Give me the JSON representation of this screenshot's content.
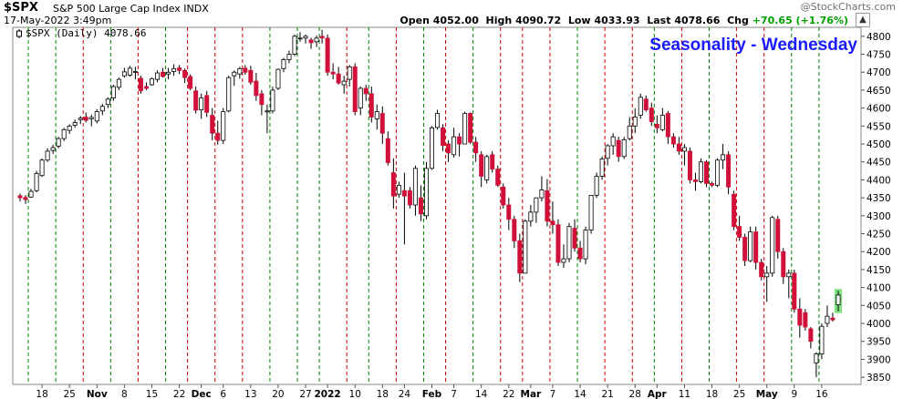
{
  "header": {
    "symbol": "$SPX",
    "description": "S&P 500 Large Cap Index INDX",
    "datetime": "17-May-2022 3:49pm",
    "copyright": "@StockCharts.com",
    "open_label": "Open",
    "open": "4052.00",
    "high_label": "High",
    "high": "4090.72",
    "low_label": "Low",
    "low": "4033.93",
    "last_label": "Last",
    "last": "4078.66",
    "chg_label": "Chg",
    "chg": "+70.65 (+1.76%)"
  },
  "icons": {
    "legend_swatch": "candlestick-legend-icon",
    "scroll_up": "arrow-up-icon"
  },
  "colors": {
    "up_candle": "#ffffff",
    "down_candle": "#d0103a",
    "title": "#1a1aff",
    "wed_line_green": "#008000",
    "wed_line_red": "#cc0000",
    "last_bar_highlight": "#7fe07f",
    "change": "#00a000"
  },
  "chart_data": {
    "type": "candlestick",
    "title": "Seasonality - Wednesday",
    "legend": "$SPX (Daily) 4078.66",
    "ylim": [
      3830,
      4825
    ],
    "y_ticks": [
      3850,
      3900,
      3950,
      4000,
      4050,
      4100,
      4150,
      4200,
      4250,
      4300,
      4350,
      4400,
      4450,
      4500,
      4550,
      4600,
      4650,
      4700,
      4750,
      4800
    ],
    "x_tick_labels": [
      {
        "label": "18",
        "bar": 4,
        "bold": false
      },
      {
        "label": "25",
        "bar": 9,
        "bold": false
      },
      {
        "label": "Nov",
        "bar": 14,
        "bold": true
      },
      {
        "label": "8",
        "bar": 19,
        "bold": false
      },
      {
        "label": "15",
        "bar": 24,
        "bold": false
      },
      {
        "label": "22",
        "bar": 29,
        "bold": false
      },
      {
        "label": "Dec",
        "bar": 33,
        "bold": true
      },
      {
        "label": "6",
        "bar": 37,
        "bold": false
      },
      {
        "label": "13",
        "bar": 42,
        "bold": false
      },
      {
        "label": "20",
        "bar": 47,
        "bold": false
      },
      {
        "label": "27",
        "bar": 52,
        "bold": false
      },
      {
        "label": "2022",
        "bar": 56,
        "bold": true
      },
      {
        "label": "10",
        "bar": 61,
        "bold": false
      },
      {
        "label": "18",
        "bar": 66,
        "bold": false
      },
      {
        "label": "24",
        "bar": 70,
        "bold": false
      },
      {
        "label": "Feb",
        "bar": 75,
        "bold": true
      },
      {
        "label": "7",
        "bar": 79,
        "bold": false
      },
      {
        "label": "14",
        "bar": 84,
        "bold": false
      },
      {
        "label": "22",
        "bar": 89,
        "bold": false
      },
      {
        "label": "Mar",
        "bar": 93,
        "bold": true
      },
      {
        "label": "7",
        "bar": 97,
        "bold": false
      },
      {
        "label": "14",
        "bar": 102,
        "bold": false
      },
      {
        "label": "21",
        "bar": 107,
        "bold": false
      },
      {
        "label": "28",
        "bar": 112,
        "bold": false
      },
      {
        "label": "Apr",
        "bar": 116,
        "bold": true
      },
      {
        "label": "11",
        "bar": 121,
        "bold": false
      },
      {
        "label": "18",
        "bar": 126,
        "bold": false
      },
      {
        "label": "25",
        "bar": 131,
        "bold": false
      },
      {
        "label": "May",
        "bar": 136,
        "bold": true
      },
      {
        "label": "9",
        "bar": 141,
        "bold": false
      },
      {
        "label": "16",
        "bar": 146,
        "bold": false
      }
    ],
    "wednesday_markers": [
      {
        "bar": 2,
        "color": "green"
      },
      {
        "bar": 7,
        "color": "green"
      },
      {
        "bar": 12,
        "color": "red"
      },
      {
        "bar": 17,
        "color": "green"
      },
      {
        "bar": 22,
        "color": "red"
      },
      {
        "bar": 27,
        "color": "green"
      },
      {
        "bar": 31,
        "color": "red"
      },
      {
        "bar": 36,
        "color": "red"
      },
      {
        "bar": 41,
        "color": "red"
      },
      {
        "bar": 46,
        "color": "green"
      },
      {
        "bar": 51,
        "color": "green"
      },
      {
        "bar": 55,
        "color": "green"
      },
      {
        "bar": 60,
        "color": "red"
      },
      {
        "bar": 64,
        "color": "green"
      },
      {
        "bar": 69,
        "color": "red"
      },
      {
        "bar": 74,
        "color": "green"
      },
      {
        "bar": 78,
        "color": "red"
      },
      {
        "bar": 83,
        "color": "green"
      },
      {
        "bar": 88,
        "color": "red"
      },
      {
        "bar": 92,
        "color": "red"
      },
      {
        "bar": 97,
        "color": "red"
      },
      {
        "bar": 102,
        "color": "green"
      },
      {
        "bar": 107,
        "color": "red"
      },
      {
        "bar": 112,
        "color": "red"
      },
      {
        "bar": 116,
        "color": "green"
      },
      {
        "bar": 121,
        "color": "red"
      },
      {
        "bar": 126,
        "color": "green"
      },
      {
        "bar": 131,
        "color": "red"
      },
      {
        "bar": 136,
        "color": "red"
      },
      {
        "bar": 141,
        "color": "green"
      },
      {
        "bar": 146,
        "color": "green"
      }
    ],
    "series": [
      [
        4356,
        4362,
        4340,
        4350
      ],
      [
        4351,
        4358,
        4333,
        4345
      ],
      [
        4352,
        4375,
        4350,
        4368
      ],
      [
        4370,
        4425,
        4365,
        4418
      ],
      [
        4412,
        4460,
        4408,
        4455
      ],
      [
        4455,
        4488,
        4450,
        4480
      ],
      [
        4482,
        4498,
        4472,
        4490
      ],
      [
        4494,
        4520,
        4488,
        4515
      ],
      [
        4515,
        4545,
        4508,
        4540
      ],
      [
        4538,
        4555,
        4528,
        4550
      ],
      [
        4552,
        4568,
        4545,
        4560
      ],
      [
        4568,
        4578,
        4555,
        4572
      ],
      [
        4575,
        4588,
        4560,
        4566
      ],
      [
        4570,
        4582,
        4549,
        4574
      ],
      [
        4564,
        4597,
        4557,
        4590
      ],
      [
        4592,
        4612,
        4580,
        4605
      ],
      [
        4610,
        4630,
        4600,
        4625
      ],
      [
        4628,
        4665,
        4620,
        4660
      ],
      [
        4658,
        4685,
        4650,
        4680
      ],
      [
        4690,
        4712,
        4685,
        4701
      ],
      [
        4692,
        4718,
        4688,
        4711
      ],
      [
        4702,
        4715,
        4680,
        4702
      ],
      [
        4683,
        4690,
        4640,
        4648
      ],
      [
        4660,
        4672,
        4650,
        4655
      ],
      [
        4665,
        4685,
        4662,
        4682
      ],
      [
        4680,
        4705,
        4672,
        4698
      ],
      [
        4700,
        4712,
        4685,
        4688
      ],
      [
        4695,
        4712,
        4680,
        4700
      ],
      [
        4702,
        4722,
        4690,
        4710
      ],
      [
        4712,
        4720,
        4695,
        4705
      ],
      [
        4705,
        4710,
        4670,
        4685
      ],
      [
        4688,
        4694,
        4650,
        4655
      ],
      [
        4648,
        4660,
        4585,
        4594
      ],
      [
        4595,
        4640,
        4570,
        4628
      ],
      [
        4635,
        4648,
        4575,
        4588
      ],
      [
        4580,
        4600,
        4510,
        4530
      ],
      [
        4530,
        4565,
        4498,
        4510
      ],
      [
        4510,
        4600,
        4500,
        4590
      ],
      [
        4592,
        4690,
        4588,
        4685
      ],
      [
        4690,
        4705,
        4662,
        4700
      ],
      [
        4695,
        4715,
        4682,
        4710
      ],
      [
        4711,
        4720,
        4693,
        4700
      ],
      [
        4705,
        4718,
        4665,
        4672
      ],
      [
        4675,
        4698,
        4620,
        4635
      ],
      [
        4640,
        4650,
        4580,
        4610
      ],
      [
        4590,
        4610,
        4530,
        4592
      ],
      [
        4592,
        4660,
        4585,
        4650
      ],
      [
        4655,
        4710,
        4650,
        4708
      ],
      [
        4710,
        4740,
        4700,
        4735
      ],
      [
        4735,
        4760,
        4725,
        4750
      ],
      [
        4750,
        4805,
        4745,
        4800
      ],
      [
        4795,
        4812,
        4785,
        4795
      ],
      [
        4795,
        4805,
        4780,
        4800
      ],
      [
        4790,
        4796,
        4765,
        4782
      ],
      [
        4785,
        4802,
        4770,
        4795
      ],
      [
        4800,
        4818,
        4780,
        4795
      ],
      [
        4795,
        4805,
        4690,
        4700
      ],
      [
        4700,
        4725,
        4680,
        4695
      ],
      [
        4695,
        4715,
        4665,
        4670
      ],
      [
        4665,
        4690,
        4640,
        4675
      ],
      [
        4680,
        4720,
        4660,
        4715
      ],
      [
        4715,
        4725,
        4580,
        4590
      ],
      [
        4600,
        4660,
        4580,
        4655
      ],
      [
        4655,
        4665,
        4620,
        4640
      ],
      [
        4640,
        4660,
        4560,
        4575
      ],
      [
        4570,
        4610,
        4540,
        4590
      ],
      [
        4585,
        4605,
        4500,
        4530
      ],
      [
        4515,
        4535,
        4440,
        4448
      ],
      [
        4420,
        4460,
        4320,
        4355
      ],
      [
        4360,
        4395,
        4350,
        4385
      ],
      [
        4370,
        4420,
        4220,
        4355
      ],
      [
        4370,
        4380,
        4320,
        4330
      ],
      [
        4330,
        4440,
        4300,
        4432
      ],
      [
        4350,
        4385,
        4285,
        4305
      ],
      [
        4300,
        4450,
        4290,
        4432
      ],
      [
        4432,
        4550,
        4428,
        4545
      ],
      [
        4546,
        4595,
        4540,
        4585
      ],
      [
        4545,
        4555,
        4480,
        4496
      ],
      [
        4500,
        4510,
        4450,
        4475
      ],
      [
        4470,
        4545,
        4462,
        4520
      ],
      [
        4520,
        4530,
        4465,
        4500
      ],
      [
        4500,
        4590,
        4500,
        4585
      ],
      [
        4585,
        4588,
        4500,
        4505
      ],
      [
        4505,
        4520,
        4450,
        4475
      ],
      [
        4470,
        4480,
        4380,
        4410
      ],
      [
        4400,
        4470,
        4390,
        4465
      ],
      [
        4470,
        4480,
        4420,
        4430
      ],
      [
        4430,
        4440,
        4380,
        4385
      ],
      [
        4380,
        4390,
        4320,
        4330
      ],
      [
        4330,
        4350,
        4260,
        4290
      ],
      [
        4290,
        4300,
        4210,
        4230
      ],
      [
        4230,
        4250,
        4115,
        4140
      ],
      [
        4140,
        4290,
        4140,
        4285
      ],
      [
        4285,
        4330,
        4270,
        4310
      ],
      [
        4310,
        4350,
        4280,
        4350
      ],
      [
        4350,
        4410,
        4340,
        4372
      ],
      [
        4370,
        4402,
        4270,
        4285
      ],
      [
        4285,
        4340,
        4250,
        4275
      ],
      [
        4275,
        4290,
        4160,
        4170
      ],
      [
        4170,
        4220,
        4155,
        4180
      ],
      [
        4180,
        4280,
        4170,
        4270
      ],
      [
        4265,
        4290,
        4200,
        4210
      ],
      [
        4210,
        4230,
        4170,
        4180
      ],
      [
        4180,
        4270,
        4165,
        4260
      ],
      [
        4260,
        4357,
        4250,
        4357
      ],
      [
        4357,
        4420,
        4350,
        4410
      ],
      [
        4410,
        4465,
        4400,
        4458
      ],
      [
        4460,
        4500,
        4440,
        4495
      ],
      [
        4495,
        4530,
        4470,
        4520
      ],
      [
        4510,
        4520,
        4450,
        4465
      ],
      [
        4465,
        4520,
        4458,
        4512
      ],
      [
        4515,
        4575,
        4510,
        4550
      ],
      [
        4550,
        4600,
        4530,
        4575
      ],
      [
        4580,
        4640,
        4570,
        4630
      ],
      [
        4625,
        4635,
        4590,
        4595
      ],
      [
        4600,
        4615,
        4550,
        4562
      ],
      [
        4555,
        4580,
        4530,
        4545
      ],
      [
        4540,
        4600,
        4535,
        4580
      ],
      [
        4585,
        4592,
        4500,
        4520
      ],
      [
        4520,
        4530,
        4490,
        4500
      ],
      [
        4500,
        4520,
        4470,
        4480
      ],
      [
        4480,
        4500,
        4440,
        4490
      ],
      [
        4480,
        4490,
        4390,
        4400
      ],
      [
        4400,
        4420,
        4370,
        4395
      ],
      [
        4395,
        4460,
        4390,
        4450
      ],
      [
        4450,
        4455,
        4380,
        4390
      ],
      [
        4390,
        4395,
        4380,
        4385
      ],
      [
        4385,
        4460,
        4380,
        4455
      ],
      [
        4455,
        4500,
        4430,
        4470
      ],
      [
        4470,
        4480,
        4360,
        4380
      ],
      [
        4360,
        4370,
        4260,
        4270
      ],
      [
        4270,
        4300,
        4230,
        4240
      ],
      [
        4240,
        4250,
        4160,
        4175
      ],
      [
        4175,
        4270,
        4170,
        4255
      ],
      [
        4255,
        4270,
        4150,
        4170
      ],
      [
        4170,
        4180,
        4120,
        4130
      ],
      [
        4130,
        4160,
        4060,
        4140
      ],
      [
        4140,
        4300,
        4130,
        4295
      ],
      [
        4290,
        4300,
        4180,
        4200
      ],
      [
        4200,
        4210,
        4110,
        4130
      ],
      [
        4130,
        4150,
        4070,
        4140
      ],
      [
        4140,
        4150,
        4030,
        4040
      ],
      [
        4040,
        4070,
        3960,
        3995
      ],
      [
        4030,
        4040,
        3980,
        3990
      ],
      [
        3985,
        3990,
        3930,
        3950
      ],
      [
        3890,
        3920,
        3850,
        3915
      ],
      [
        3915,
        4000,
        3900,
        3992
      ],
      [
        4000,
        4050,
        3990,
        4020
      ],
      [
        4015,
        4030,
        4005,
        4010
      ],
      [
        4052,
        4091,
        4034,
        4079
      ]
    ]
  }
}
